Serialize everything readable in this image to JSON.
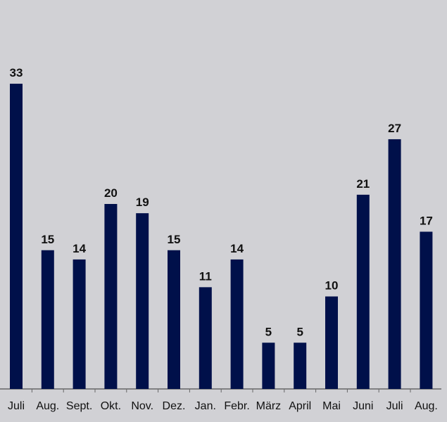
{
  "chart_data": {
    "type": "bar",
    "categories": [
      "Juli",
      "Aug.",
      "Sept.",
      "Okt.",
      "Nov.",
      "Dez.",
      "Jan.",
      "Febr.",
      "März",
      "April",
      "Mai",
      "Juni",
      "Juli",
      "Aug."
    ],
    "values": [
      33,
      15,
      14,
      20,
      19,
      15,
      11,
      14,
      5,
      5,
      10,
      21,
      27,
      17
    ],
    "ylim": [
      0,
      42
    ],
    "grid": false,
    "bar_color": "#00104a",
    "axis_color": "#555555",
    "data_labels": true
  }
}
